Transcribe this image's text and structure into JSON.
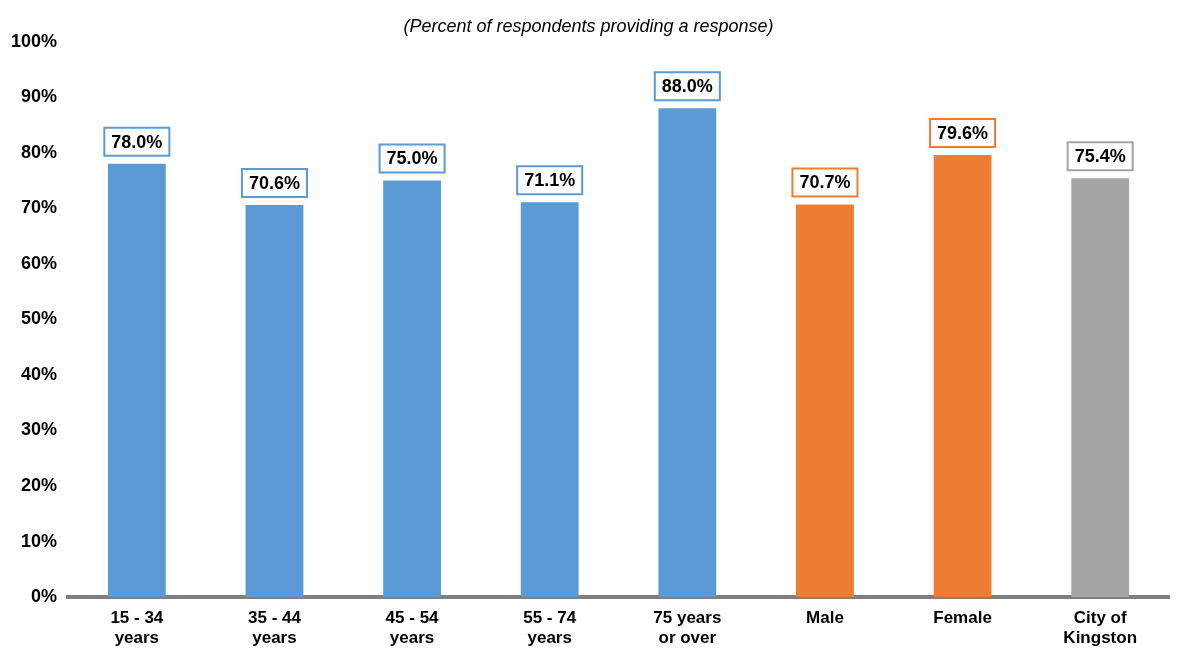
{
  "chart_data": {
    "type": "bar",
    "subtitle": "(Percent of respondents providing a response)",
    "categories": [
      "15 - 34 years",
      "35 - 44 years",
      "45 - 54 years",
      "55 - 74 years",
      "75 years or over",
      "Male",
      "Female",
      "City of Kingston"
    ],
    "values": [
      78.0,
      70.6,
      75.0,
      71.1,
      88.0,
      70.7,
      79.6,
      75.4
    ],
    "colors": [
      "#5b9bd5",
      "#5b9bd5",
      "#5b9bd5",
      "#5b9bd5",
      "#5b9bd5",
      "#ed7d31",
      "#ed7d31",
      "#a5a5a5"
    ],
    "value_labels": [
      "78.0%",
      "70.6%",
      "75.0%",
      "71.1%",
      "88.0%",
      "70.7%",
      "79.6%",
      "75.4%"
    ],
    "ylim": [
      0,
      100
    ],
    "yticks": [
      {
        "value": 0,
        "label": "0%"
      },
      {
        "value": 10,
        "label": "10%"
      },
      {
        "value": 20,
        "label": "20%"
      },
      {
        "value": 30,
        "label": "30%"
      },
      {
        "value": 40,
        "label": "40%"
      },
      {
        "value": 50,
        "label": "50%"
      },
      {
        "value": 60,
        "label": "60%"
      },
      {
        "value": 70,
        "label": "70%"
      },
      {
        "value": 80,
        "label": "80%"
      },
      {
        "value": 90,
        "label": "90%"
      },
      {
        "value": 100,
        "label": "100%"
      }
    ],
    "grid": false,
    "legend": false
  }
}
